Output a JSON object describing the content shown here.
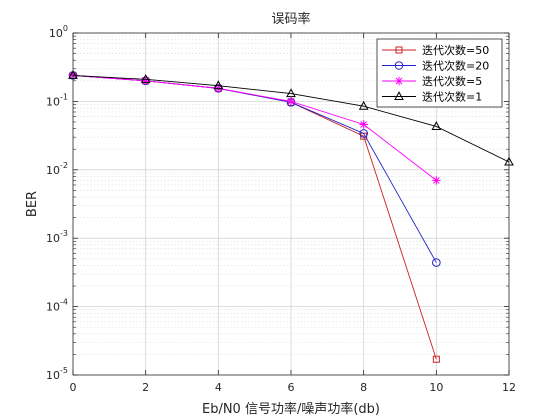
{
  "chart_data": {
    "type": "line",
    "title": "误码率",
    "xlabel": "Eb/N0 信号功率/噪声功率(db)",
    "ylabel": "BER",
    "x_ticks": [
      "0",
      "2",
      "4",
      "6",
      "8",
      "10",
      "12"
    ],
    "y_ticks": [
      {
        "base": "10",
        "exp": "0"
      },
      {
        "base": "10",
        "exp": "-1"
      },
      {
        "base": "10",
        "exp": "-2"
      },
      {
        "base": "10",
        "exp": "-3"
      },
      {
        "base": "10",
        "exp": "-4"
      },
      {
        "base": "10",
        "exp": "-5"
      }
    ],
    "xlim": [
      0,
      12
    ],
    "ylim": [
      1e-05,
      1
    ],
    "yscale": "log",
    "grid": true,
    "minor_grid": true,
    "legend_position": "top-right",
    "series": [
      {
        "name": "迭代次数=50",
        "color": "#cc2222",
        "marker": "square",
        "x": [
          0,
          2,
          4,
          6,
          8,
          10
        ],
        "y": [
          0.24,
          0.2,
          0.155,
          0.097,
          0.031,
          1.7e-05
        ]
      },
      {
        "name": "迭代次数=20",
        "color": "#2222cc",
        "marker": "circle",
        "x": [
          0,
          2,
          4,
          6,
          8,
          10
        ],
        "y": [
          0.24,
          0.2,
          0.155,
          0.097,
          0.034,
          0.00044
        ]
      },
      {
        "name": "迭代次数=5",
        "color": "#ff00ff",
        "marker": "star",
        "x": [
          0,
          2,
          4,
          6,
          8,
          10
        ],
        "y": [
          0.24,
          0.2,
          0.155,
          0.1,
          0.046,
          0.007
        ]
      },
      {
        "name": "迭代次数=1",
        "color": "#000000",
        "marker": "triangle",
        "x": [
          0,
          2,
          4,
          6,
          8,
          10,
          12
        ],
        "y": [
          0.24,
          0.21,
          0.17,
          0.13,
          0.085,
          0.043,
          0.013
        ]
      }
    ]
  }
}
